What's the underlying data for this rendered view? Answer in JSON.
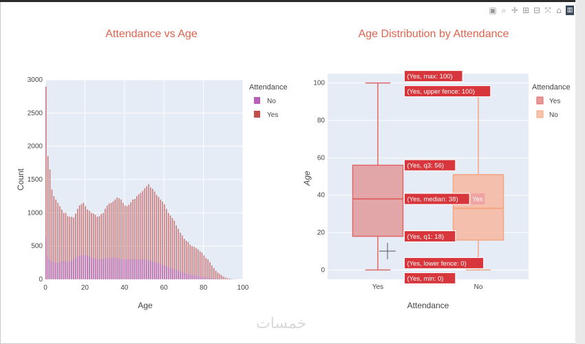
{
  "toolbar": {
    "icons": [
      "camera-icon",
      "zoom-icon",
      "pan-icon",
      "zoom-in-icon",
      "zoom-out-icon",
      "autoscale-icon",
      "home-icon",
      "plotly-logo-icon"
    ]
  },
  "watermark": "خمسات",
  "chart_data": [
    {
      "type": "bar",
      "title": "Attendance vs Age",
      "xlabel": "Age",
      "ylabel": "Count",
      "xlim": [
        0,
        100
      ],
      "ylim": [
        0,
        3000
      ],
      "xticks": [
        0,
        20,
        40,
        60,
        80,
        100
      ],
      "yticks": [
        0,
        500,
        1000,
        1500,
        2000,
        2500,
        3000
      ],
      "legend_title": "Attendance",
      "legend_position": "top-right",
      "barmode": "overlay",
      "x": [
        0,
        1,
        2,
        3,
        4,
        5,
        6,
        7,
        8,
        9,
        10,
        11,
        12,
        13,
        14,
        15,
        16,
        17,
        18,
        19,
        20,
        21,
        22,
        23,
        24,
        25,
        26,
        27,
        28,
        29,
        30,
        31,
        32,
        33,
        34,
        35,
        36,
        37,
        38,
        39,
        40,
        41,
        42,
        43,
        44,
        45,
        46,
        47,
        48,
        49,
        50,
        51,
        52,
        53,
        54,
        55,
        56,
        57,
        58,
        59,
        60,
        61,
        62,
        63,
        64,
        65,
        66,
        67,
        68,
        69,
        70,
        71,
        72,
        73,
        74,
        75,
        76,
        77,
        78,
        79,
        80,
        81,
        82,
        83,
        84,
        85,
        86,
        87,
        88,
        89,
        90,
        91,
        92,
        93,
        94,
        95,
        96,
        97,
        98,
        99
      ],
      "series": [
        {
          "name": "Yes",
          "color": "#c0504d",
          "values": [
            2900,
            1850,
            1650,
            1350,
            1250,
            1200,
            1150,
            1100,
            1050,
            1000,
            1000,
            950,
            940,
            940,
            930,
            990,
            1060,
            1110,
            1130,
            1150,
            1100,
            1050,
            1030,
            1000,
            990,
            970,
            940,
            950,
            980,
            1000,
            1060,
            1110,
            1140,
            1150,
            1170,
            1200,
            1230,
            1220,
            1200,
            1150,
            1110,
            1100,
            1120,
            1160,
            1200,
            1210,
            1250,
            1280,
            1300,
            1330,
            1370,
            1400,
            1430,
            1380,
            1360,
            1320,
            1270,
            1240,
            1200,
            1170,
            1130,
            1060,
            1000,
            960,
            920,
            880,
            810,
            760,
            700,
            660,
            610,
            580,
            560,
            520,
            500,
            490,
            470,
            450,
            420,
            400,
            360,
            320,
            300,
            260,
            210,
            170,
            130,
            100,
            80,
            60,
            40,
            25,
            15,
            10,
            6,
            4,
            2,
            1,
            1,
            0
          ]
        },
        {
          "name": "No",
          "color": "#b85fb9",
          "values": [
            640,
            330,
            290,
            270,
            260,
            250,
            250,
            260,
            270,
            280,
            270,
            260,
            270,
            280,
            300,
            320,
            340,
            350,
            360,
            370,
            360,
            350,
            340,
            330,
            320,
            310,
            300,
            300,
            300,
            310,
            310,
            320,
            320,
            320,
            330,
            330,
            320,
            310,
            310,
            300,
            300,
            300,
            300,
            300,
            300,
            310,
            300,
            300,
            300,
            300,
            300,
            290,
            290,
            280,
            270,
            260,
            250,
            240,
            230,
            220,
            210,
            200,
            180,
            170,
            160,
            150,
            140,
            130,
            120,
            110,
            100,
            90,
            80,
            70,
            65,
            60,
            55,
            50,
            45,
            40,
            35,
            30,
            25,
            20,
            15,
            12,
            10,
            8,
            6,
            4,
            3,
            2,
            1,
            1,
            0,
            0,
            0,
            0,
            0,
            0
          ]
        }
      ]
    },
    {
      "type": "box",
      "title": "Age Distribution by Attendance",
      "xlabel": "Attendance",
      "ylabel": "Age",
      "categories": [
        "Yes",
        "No"
      ],
      "ylim": [
        -5,
        105
      ],
      "yticks": [
        0,
        20,
        40,
        60,
        80,
        100
      ],
      "legend_title": "Attendance",
      "legend_position": "top-right",
      "series": [
        {
          "name": "Yes",
          "color": "#e06666",
          "min": 0,
          "q1": 18,
          "median": 38,
          "q3": 56,
          "upper_fence": 100,
          "lower_fence": 0,
          "max": 100
        },
        {
          "name": "No",
          "color": "#f4a582",
          "min": 0,
          "q1": 16,
          "median": 33,
          "q3": 51,
          "upper_fence": 98,
          "lower_fence": 0,
          "max": 98
        }
      ],
      "hover_labels": [
        {
          "text": "(Yes, max: 100)",
          "y": 100
        },
        {
          "text": "(Yes, upper fence: 100)",
          "y": 100
        },
        {
          "text": "(Yes, q3: 56)",
          "y": 56
        },
        {
          "text": "(Yes, median: 38)",
          "y": 38
        },
        {
          "text": "(Yes, q1: 18)",
          "y": 18
        },
        {
          "text": "(Yes, lower fence: 0)",
          "y": 0
        },
        {
          "text": "(Yes, min: 0)",
          "y": 0
        }
      ],
      "hover_extra_label": "Yes"
    }
  ]
}
